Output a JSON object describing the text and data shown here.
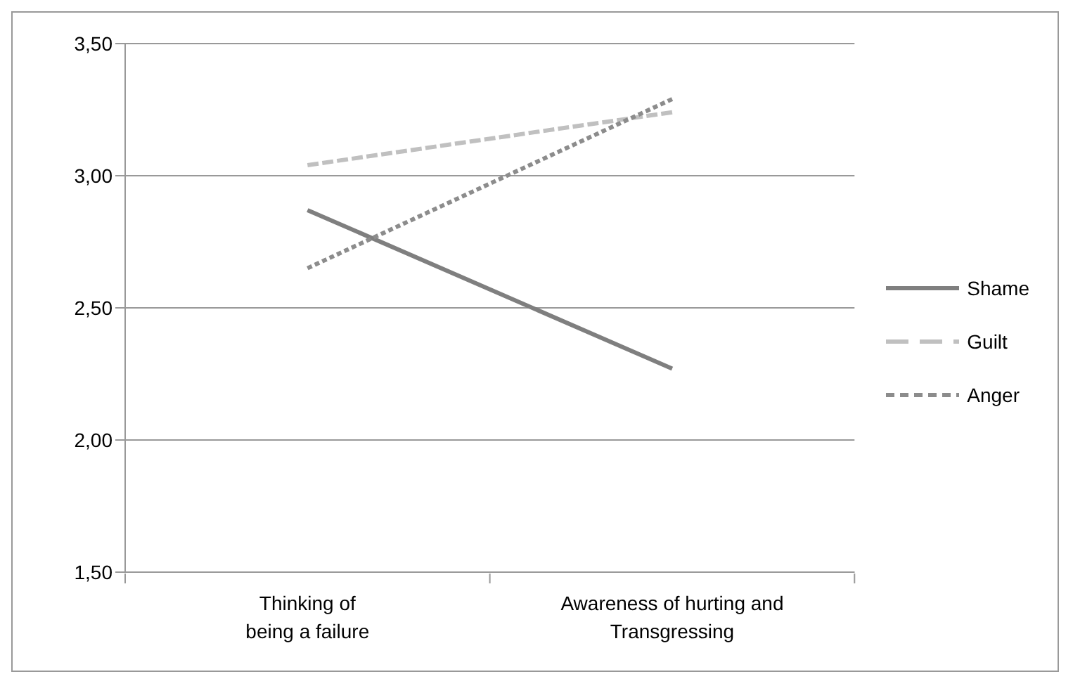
{
  "chart_data": {
    "type": "line",
    "categories": [
      "Thinking of\nbeing a failure",
      "Awareness of hurting and\nTransgressing"
    ],
    "series": [
      {
        "name": "Shame",
        "color": "#7f7f7f",
        "line_style": "solid",
        "values": [
          2.87,
          2.27
        ]
      },
      {
        "name": "Guilt",
        "color": "#c0c0c0",
        "line_style": "long_dashed",
        "values": [
          3.04,
          3.24
        ]
      },
      {
        "name": "Anger",
        "color": "#8c8c8c",
        "line_style": "dashed",
        "values": [
          2.65,
          3.29
        ]
      }
    ],
    "ylim": [
      1.5,
      3.5
    ],
    "yticks": [
      {
        "value": 1.5,
        "label": "1,50"
      },
      {
        "value": 2,
        "label": "2,00"
      },
      {
        "value": 2.5,
        "label": "2,50"
      },
      {
        "value": 3,
        "label": "3,00"
      },
      {
        "value": 3.5,
        "label": "3,50"
      }
    ],
    "grid": "y",
    "legend": "right",
    "marker": "none"
  }
}
